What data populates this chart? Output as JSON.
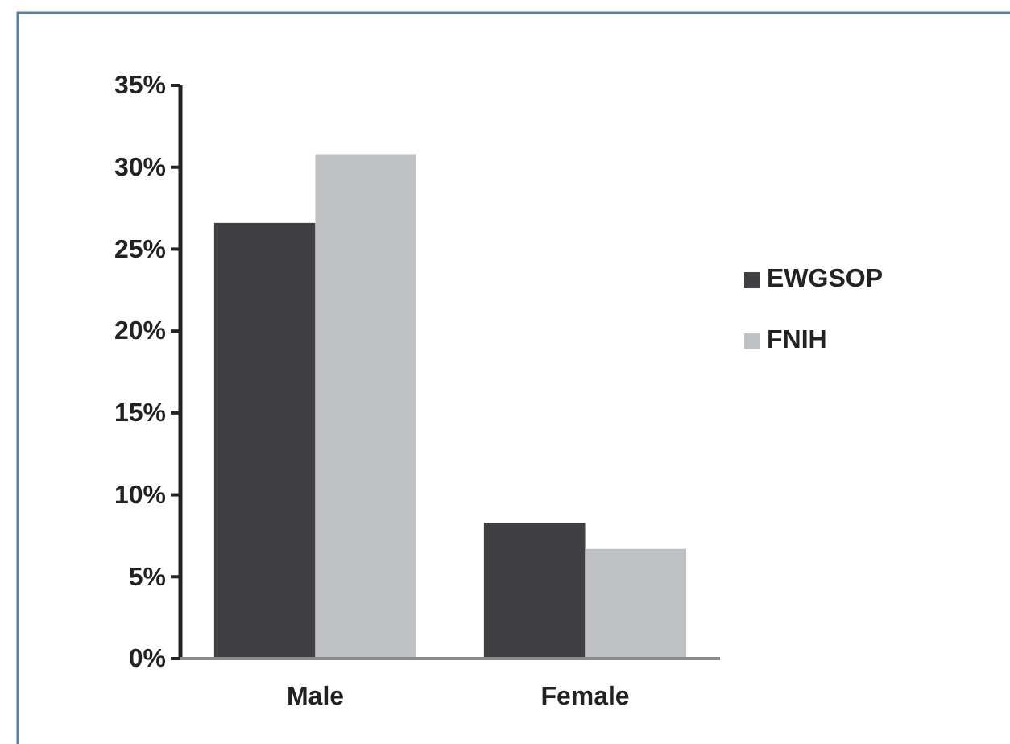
{
  "chart_data": {
    "type": "bar",
    "categories": [
      "Male",
      "Female"
    ],
    "series": [
      {
        "name": "EWGSOP",
        "color": "#404042",
        "values": [
          26.6,
          8.3
        ]
      },
      {
        "name": "FNIH",
        "color": "#bfc0c2",
        "values": [
          30.8,
          6.7
        ]
      }
    ],
    "ylim": [
      0,
      35
    ],
    "yticks": [
      {
        "value": 0,
        "label": "0%"
      },
      {
        "value": 5,
        "label": "5%"
      },
      {
        "value": 10,
        "label": "10%"
      },
      {
        "value": 15,
        "label": "15%"
      },
      {
        "value": 20,
        "label": "20%"
      },
      {
        "value": 25,
        "label": "25%"
      },
      {
        "value": 30,
        "label": "30%"
      },
      {
        "value": 35,
        "label": "35%"
      }
    ],
    "legend": "right",
    "grid": false
  }
}
